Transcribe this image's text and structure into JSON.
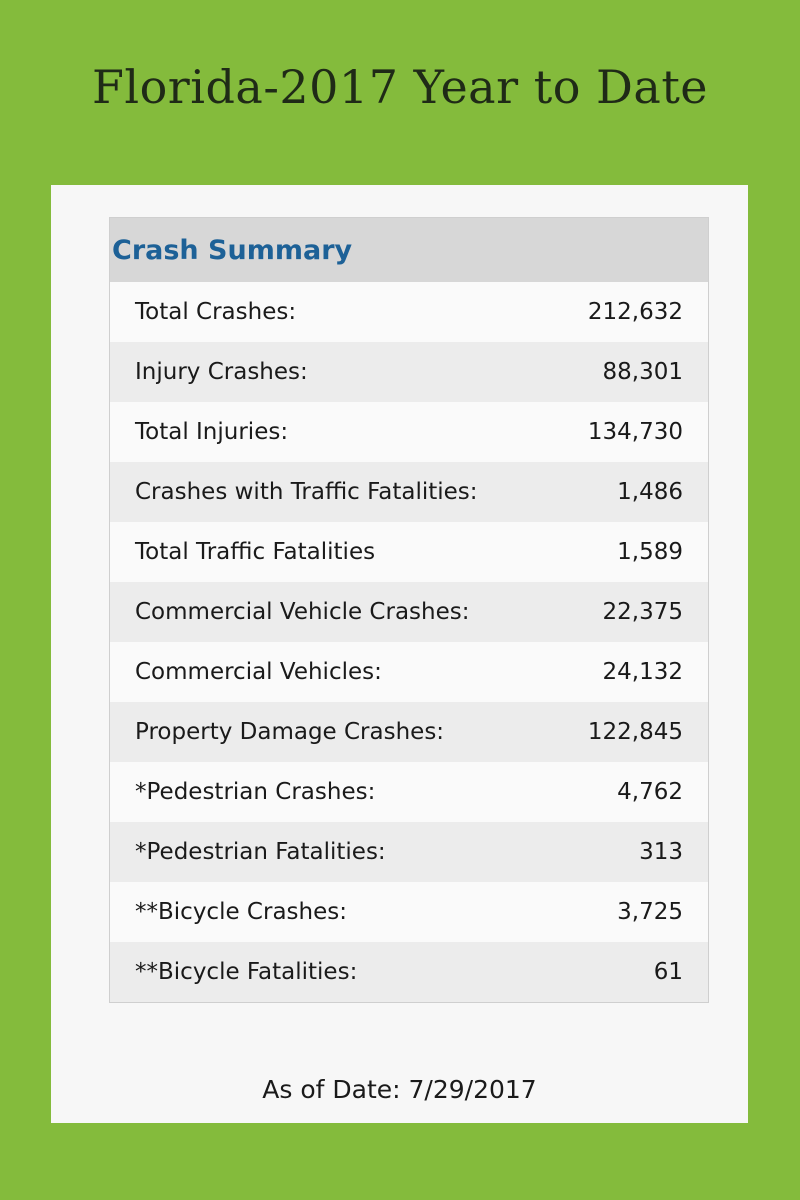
{
  "page": {
    "title": "Florida-2017 Year to Date",
    "background_color": "#84bb3c"
  },
  "summary": {
    "title": "Crash Summary",
    "title_color": "#1d6197",
    "rows": [
      {
        "label": "Total Crashes:",
        "value": "212,632"
      },
      {
        "label": "Injury Crashes:",
        "value": "88,301"
      },
      {
        "label": "Total Injuries:",
        "value": "134,730"
      },
      {
        "label": "Crashes with Traffic Fatalities:",
        "value": "1,486"
      },
      {
        "label": "Total Traffic Fatalities",
        "value": "1,589"
      },
      {
        "label": "Commercial Vehicle Crashes:",
        "value": "22,375"
      },
      {
        "label": "Commercial Vehicles:",
        "value": "24,132"
      },
      {
        "label": "Property Damage Crashes:",
        "value": "122,845"
      },
      {
        "label": "*Pedestrian Crashes:",
        "value": "4,762"
      },
      {
        "label": "*Pedestrian Fatalities:",
        "value": "313"
      },
      {
        "label": "**Bicycle Crashes:",
        "value": "3,725"
      },
      {
        "label": "**Bicycle Fatalities:",
        "value": "61"
      }
    ]
  },
  "footer": {
    "as_of_label": "As of Date:",
    "as_of_date": "7/29/2017"
  }
}
